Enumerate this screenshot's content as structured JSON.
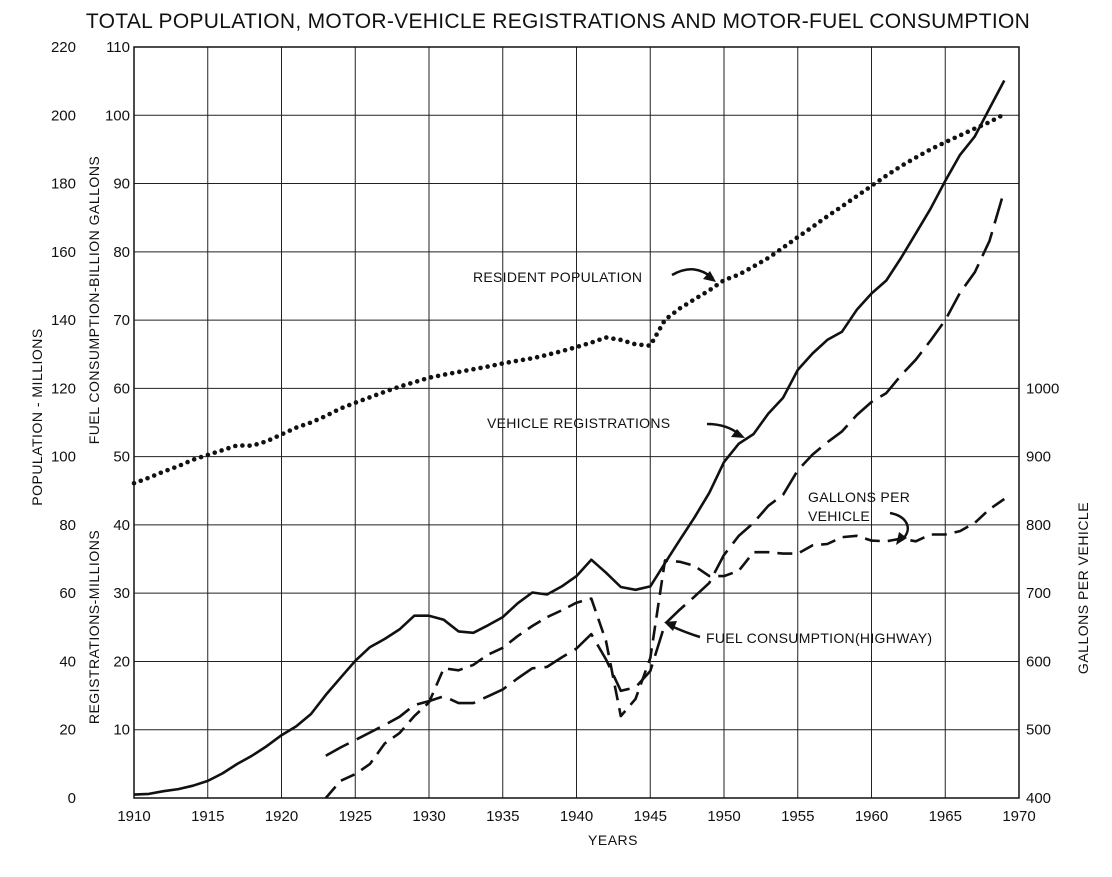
{
  "chart_data": {
    "type": "line",
    "title": "TOTAL POPULATION, MOTOR-VEHICLE REGISTRATIONS AND MOTOR-FUEL CONSUMPTION",
    "xlabel": "YEARS",
    "ylabel_left_outer": "POPULATION - MILLIONS",
    "ylabel_left_inner_top": "FUEL CONSUMPTION-BILLION GALLONS",
    "ylabel_left_inner_bottom": "REGISTRATIONS-MILLIONS",
    "ylabel_right": "GALLONS PER VEHICLE",
    "xlim": [
      1910,
      1970
    ],
    "ylim_population": [
      0,
      220
    ],
    "ylim_registrations_fuel": [
      0,
      110
    ],
    "ylim_gallons": [
      400,
      1000
    ],
    "grid": true,
    "x_ticks": [
      "1910",
      "1915",
      "1920",
      "1925",
      "1930",
      "1935",
      "1940",
      "1945",
      "1950",
      "1955",
      "1960",
      "1965",
      "1970"
    ],
    "y_ticks_population": [
      "0",
      "20",
      "40",
      "60",
      "80",
      "100",
      "120",
      "140",
      "160",
      "180",
      "200",
      "220"
    ],
    "y_ticks_registrations_fuel": [
      "10",
      "20",
      "30",
      "40",
      "50",
      "60",
      "70",
      "80",
      "90",
      "100",
      "110"
    ],
    "y_ticks_gallons": [
      "400",
      "500",
      "600",
      "700",
      "800",
      "900",
      "1000"
    ],
    "series": [
      {
        "name": "RESIDENT POPULATION",
        "axis": "population",
        "style": "dotted",
        "x": [
          1910,
          1911,
          1912,
          1913,
          1914,
          1915,
          1916,
          1917,
          1918,
          1919,
          1920,
          1921,
          1922,
          1923,
          1924,
          1925,
          1926,
          1927,
          1928,
          1929,
          1930,
          1931,
          1932,
          1933,
          1934,
          1935,
          1936,
          1937,
          1938,
          1939,
          1940,
          1941,
          1942,
          1943,
          1944,
          1945,
          1946,
          1947,
          1948,
          1949,
          1950,
          1951,
          1952,
          1953,
          1954,
          1955,
          1956,
          1957,
          1958,
          1959,
          1960,
          1961,
          1962,
          1963,
          1964,
          1965,
          1966,
          1967,
          1968,
          1969
        ],
        "y": [
          92.2,
          93.8,
          95.6,
          97.2,
          99.1,
          100.5,
          101.9,
          103.3,
          103.2,
          104.5,
          106.5,
          108.5,
          110.0,
          111.9,
          114.1,
          115.8,
          117.4,
          119.0,
          120.5,
          121.8,
          123.1,
          124.0,
          124.8,
          125.6,
          126.4,
          127.3,
          128.1,
          128.8,
          129.8,
          130.9,
          132.1,
          133.4,
          134.9,
          134.2,
          132.9,
          132.5,
          140.1,
          143.4,
          146.1,
          148.7,
          151.7,
          153.3,
          155.7,
          158.2,
          161.2,
          164.3,
          167.3,
          170.4,
          173.3,
          176.3,
          179.3,
          182.3,
          185.1,
          187.6,
          190.0,
          192.1,
          194.1,
          196.1,
          198.0,
          200.3
        ]
      },
      {
        "name": "VEHICLE REGISTRATIONS",
        "axis": "registrations_fuel",
        "style": "solid",
        "x": [
          1910,
          1911,
          1912,
          1913,
          1914,
          1915,
          1916,
          1917,
          1918,
          1919,
          1920,
          1921,
          1922,
          1923,
          1924,
          1925,
          1926,
          1927,
          1928,
          1929,
          1930,
          1931,
          1932,
          1933,
          1934,
          1935,
          1936,
          1937,
          1938,
          1939,
          1940,
          1941,
          1942,
          1943,
          1944,
          1945,
          1946,
          1947,
          1948,
          1949,
          1950,
          1951,
          1952,
          1953,
          1954,
          1955,
          1956,
          1957,
          1958,
          1959,
          1960,
          1961,
          1962,
          1963,
          1964,
          1965,
          1966,
          1967,
          1968,
          1969
        ],
        "y": [
          0.5,
          0.6,
          1.0,
          1.3,
          1.8,
          2.5,
          3.6,
          5.0,
          6.2,
          7.6,
          9.2,
          10.5,
          12.3,
          15.1,
          17.6,
          20.1,
          22.1,
          23.3,
          24.7,
          26.7,
          26.7,
          26.1,
          24.4,
          24.2,
          25.3,
          26.5,
          28.5,
          30.1,
          29.8,
          31.0,
          32.5,
          34.9,
          33.0,
          30.9,
          30.5,
          31.0,
          34.4,
          37.8,
          41.1,
          44.7,
          49.2,
          51.9,
          53.3,
          56.3,
          58.6,
          62.7,
          65.1,
          67.1,
          68.3,
          71.5,
          73.9,
          75.8,
          79.1,
          82.7,
          86.3,
          90.4,
          94.2,
          96.9,
          101.0,
          105.1
        ]
      },
      {
        "name": "FUEL CONSUMPTION(HIGHWAY)",
        "axis": "registrations_fuel",
        "style": "long-dash",
        "x": [
          1923,
          1924,
          1925,
          1926,
          1927,
          1928,
          1929,
          1930,
          1931,
          1932,
          1933,
          1934,
          1935,
          1936,
          1937,
          1938,
          1939,
          1940,
          1941,
          1942,
          1943,
          1944,
          1945,
          1946,
          1947,
          1948,
          1949,
          1950,
          1951,
          1952,
          1953,
          1954,
          1955,
          1956,
          1957,
          1958,
          1959,
          1960,
          1961,
          1962,
          1963,
          1964,
          1965,
          1966,
          1967,
          1968,
          1969
        ],
        "y": [
          6.2,
          7.4,
          8.5,
          9.6,
          10.7,
          11.9,
          13.6,
          14.2,
          14.9,
          13.9,
          13.9,
          14.9,
          15.9,
          17.5,
          19.0,
          19.2,
          20.6,
          21.9,
          24.0,
          20.3,
          15.7,
          16.2,
          18.6,
          25.5,
          27.6,
          29.5,
          31.5,
          35.6,
          38.4,
          40.3,
          42.8,
          44.4,
          48.0,
          50.3,
          52.1,
          53.7,
          56.1,
          58.0,
          59.3,
          61.9,
          64.2,
          67.0,
          70.0,
          74.0,
          77.0,
          81.6,
          89.0
        ]
      },
      {
        "name": "GALLONS PER VEHICLE",
        "axis": "gallons",
        "style": "dashed",
        "x": [
          1923,
          1924,
          1925,
          1926,
          1927,
          1928,
          1929,
          1930,
          1931,
          1932,
          1933,
          1934,
          1935,
          1936,
          1937,
          1938,
          1939,
          1940,
          1941,
          1942,
          1943,
          1944,
          1945,
          1946,
          1947,
          1948,
          1949,
          1950,
          1951,
          1952,
          1953,
          1954,
          1955,
          1956,
          1957,
          1958,
          1959,
          1960,
          1961,
          1962,
          1963,
          1964,
          1965,
          1966,
          1967,
          1968,
          1969
        ],
        "y": [
          400,
          425,
          435,
          450,
          480,
          495,
          520,
          540,
          590,
          587,
          595,
          610,
          620,
          637,
          652,
          665,
          675,
          686,
          692,
          630,
          520,
          545,
          605,
          748,
          746,
          740,
          725,
          725,
          733,
          760,
          760,
          758,
          758,
          770,
          772,
          782,
          784,
          777,
          776,
          780,
          776,
          786,
          786,
          791,
          803,
          823,
          838
        ]
      }
    ],
    "annotations": [
      {
        "text": "RESIDENT POPULATION"
      },
      {
        "text": "VEHICLE REGISTRATIONS"
      },
      {
        "text": "GALLONS PER"
      },
      {
        "text": "VEHICLE"
      },
      {
        "text": "FUEL CONSUMPTION(HIGHWAY)"
      }
    ]
  }
}
